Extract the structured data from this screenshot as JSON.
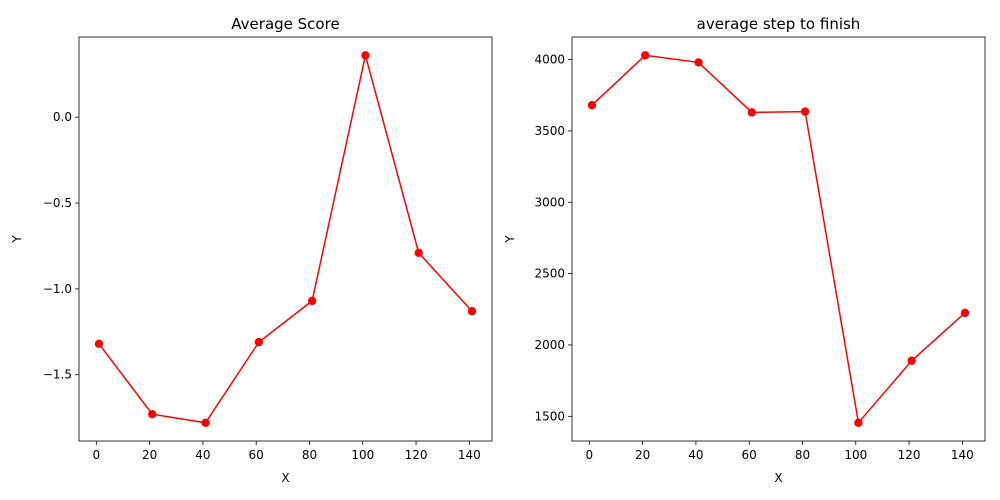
{
  "chart_data": [
    {
      "type": "line",
      "title": "Average Score",
      "xlabel": "X",
      "ylabel": "Y",
      "x": [
        1,
        21,
        41,
        61,
        81,
        101,
        121,
        141
      ],
      "series": [
        {
          "values": [
            -1.32,
            -1.73,
            -1.78,
            -1.31,
            -1.07,
            0.36,
            -0.79,
            -1.13
          ]
        }
      ],
      "xlim": [
        -6.5,
        148.5
      ],
      "ylim": [
        -1.886,
        0.467
      ],
      "xticks": [
        0,
        20,
        40,
        60,
        80,
        100,
        120,
        140
      ],
      "xtick_labels": [
        "0",
        "20",
        "40",
        "60",
        "80",
        "100",
        "120",
        "140"
      ],
      "yticks": [
        -1.5,
        -1.0,
        -0.5,
        0.0
      ],
      "ytick_labels": [
        "−1.5",
        "−1.0",
        "−0.5",
        "0.0"
      ],
      "grid": false,
      "color": "#ff0000"
    },
    {
      "type": "line",
      "title": "average step to finish",
      "xlabel": "X",
      "ylabel": "Y",
      "x": [
        1,
        21,
        41,
        61,
        81,
        101,
        121,
        141
      ],
      "series": [
        {
          "values": [
            3680,
            4030,
            3980,
            3630,
            3635,
            1455,
            1890,
            2225
          ]
        }
      ],
      "xlim": [
        -6.5,
        148.5
      ],
      "ylim": [
        1327,
        4158
      ],
      "xticks": [
        0,
        20,
        40,
        60,
        80,
        100,
        120,
        140
      ],
      "xtick_labels": [
        "0",
        "20",
        "40",
        "60",
        "80",
        "100",
        "120",
        "140"
      ],
      "yticks": [
        1500,
        2000,
        2500,
        3000,
        3500,
        4000
      ],
      "ytick_labels": [
        "1500",
        "2000",
        "2500",
        "3000",
        "3500",
        "4000"
      ],
      "grid": false,
      "color": "#ff0000"
    }
  ]
}
